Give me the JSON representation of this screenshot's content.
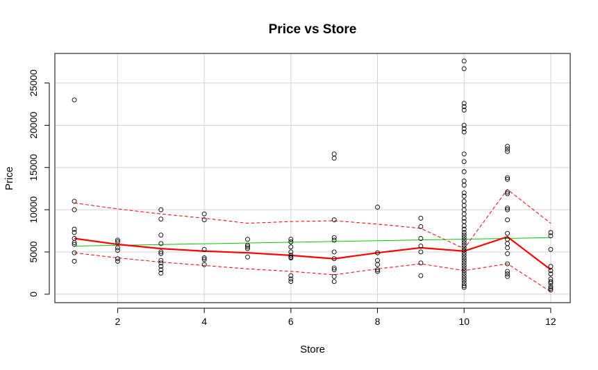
{
  "chart_data": {
    "type": "scatter",
    "title": "Price vs Store",
    "xlabel": "Store",
    "ylabel": "Price",
    "xlim": [
      0.55,
      12.45
    ],
    "ylim": [
      -1000,
      28500
    ],
    "x_ticks": [
      2,
      4,
      6,
      8,
      10,
      12
    ],
    "y_ticks": [
      0,
      5000,
      10000,
      15000,
      20000,
      25000
    ],
    "grid": true,
    "points": [
      {
        "x": 1,
        "y": 23000
      },
      {
        "x": 1,
        "y": 11000
      },
      {
        "x": 1,
        "y": 10000
      },
      {
        "x": 1,
        "y": 7700
      },
      {
        "x": 1,
        "y": 7300
      },
      {
        "x": 1,
        "y": 6600
      },
      {
        "x": 1,
        "y": 6100
      },
      {
        "x": 1,
        "y": 5900
      },
      {
        "x": 1,
        "y": 4900
      },
      {
        "x": 1,
        "y": 3900
      },
      {
        "x": 2,
        "y": 6400
      },
      {
        "x": 2,
        "y": 6200
      },
      {
        "x": 2,
        "y": 5500
      },
      {
        "x": 2,
        "y": 5200
      },
      {
        "x": 2,
        "y": 4200
      },
      {
        "x": 2,
        "y": 3900
      },
      {
        "x": 3,
        "y": 10000
      },
      {
        "x": 3,
        "y": 8900
      },
      {
        "x": 3,
        "y": 7000
      },
      {
        "x": 3,
        "y": 6000
      },
      {
        "x": 3,
        "y": 5000
      },
      {
        "x": 3,
        "y": 4800
      },
      {
        "x": 3,
        "y": 4000
      },
      {
        "x": 3,
        "y": 3700
      },
      {
        "x": 3,
        "y": 3300
      },
      {
        "x": 3,
        "y": 2900
      },
      {
        "x": 3,
        "y": 2500
      },
      {
        "x": 4,
        "y": 9500
      },
      {
        "x": 4,
        "y": 8800
      },
      {
        "x": 4,
        "y": 5300
      },
      {
        "x": 4,
        "y": 4300
      },
      {
        "x": 4,
        "y": 4100
      },
      {
        "x": 4,
        "y": 3500
      },
      {
        "x": 5,
        "y": 6500
      },
      {
        "x": 5,
        "y": 5800
      },
      {
        "x": 5,
        "y": 5600
      },
      {
        "x": 5,
        "y": 5400
      },
      {
        "x": 5,
        "y": 4400
      },
      {
        "x": 6,
        "y": 6500
      },
      {
        "x": 6,
        "y": 6200
      },
      {
        "x": 6,
        "y": 5600
      },
      {
        "x": 6,
        "y": 5000
      },
      {
        "x": 6,
        "y": 4600
      },
      {
        "x": 6,
        "y": 4400
      },
      {
        "x": 6,
        "y": 4300
      },
      {
        "x": 6,
        "y": 2200
      },
      {
        "x": 6,
        "y": 1800
      },
      {
        "x": 6,
        "y": 1500
      },
      {
        "x": 7,
        "y": 16600
      },
      {
        "x": 7,
        "y": 16100
      },
      {
        "x": 7,
        "y": 8800
      },
      {
        "x": 7,
        "y": 6700
      },
      {
        "x": 7,
        "y": 6400
      },
      {
        "x": 7,
        "y": 5000
      },
      {
        "x": 7,
        "y": 4200
      },
      {
        "x": 7,
        "y": 3100
      },
      {
        "x": 7,
        "y": 2900
      },
      {
        "x": 7,
        "y": 2100
      },
      {
        "x": 7,
        "y": 1500
      },
      {
        "x": 8,
        "y": 10300
      },
      {
        "x": 8,
        "y": 4900
      },
      {
        "x": 8,
        "y": 4000
      },
      {
        "x": 8,
        "y": 3500
      },
      {
        "x": 8,
        "y": 2900
      },
      {
        "x": 8,
        "y": 2700
      },
      {
        "x": 9,
        "y": 9000
      },
      {
        "x": 9,
        "y": 8000
      },
      {
        "x": 9,
        "y": 6600
      },
      {
        "x": 9,
        "y": 5700
      },
      {
        "x": 9,
        "y": 5000
      },
      {
        "x": 9,
        "y": 3700
      },
      {
        "x": 9,
        "y": 2200
      },
      {
        "x": 10,
        "y": 27600
      },
      {
        "x": 10,
        "y": 26700
      },
      {
        "x": 10,
        "y": 22600
      },
      {
        "x": 10,
        "y": 22200
      },
      {
        "x": 10,
        "y": 21800
      },
      {
        "x": 10,
        "y": 20000
      },
      {
        "x": 10,
        "y": 19600
      },
      {
        "x": 10,
        "y": 19200
      },
      {
        "x": 10,
        "y": 16600
      },
      {
        "x": 10,
        "y": 15700
      },
      {
        "x": 10,
        "y": 14500
      },
      {
        "x": 10,
        "y": 13400
      },
      {
        "x": 10,
        "y": 12900
      },
      {
        "x": 10,
        "y": 12000
      },
      {
        "x": 10,
        "y": 11600
      },
      {
        "x": 10,
        "y": 11000
      },
      {
        "x": 10,
        "y": 10500
      },
      {
        "x": 10,
        "y": 10000
      },
      {
        "x": 10,
        "y": 9500
      },
      {
        "x": 10,
        "y": 9000
      },
      {
        "x": 10,
        "y": 8600
      },
      {
        "x": 10,
        "y": 8100
      },
      {
        "x": 10,
        "y": 7700
      },
      {
        "x": 10,
        "y": 7300
      },
      {
        "x": 10,
        "y": 7000
      },
      {
        "x": 10,
        "y": 6700
      },
      {
        "x": 10,
        "y": 6400
      },
      {
        "x": 10,
        "y": 6100
      },
      {
        "x": 10,
        "y": 5800
      },
      {
        "x": 10,
        "y": 5500
      },
      {
        "x": 10,
        "y": 5200
      },
      {
        "x": 10,
        "y": 4900
      },
      {
        "x": 10,
        "y": 4600
      },
      {
        "x": 10,
        "y": 4300
      },
      {
        "x": 10,
        "y": 4000
      },
      {
        "x": 10,
        "y": 3700
      },
      {
        "x": 10,
        "y": 3400
      },
      {
        "x": 10,
        "y": 3100
      },
      {
        "x": 10,
        "y": 2800
      },
      {
        "x": 10,
        "y": 2500
      },
      {
        "x": 10,
        "y": 2200
      },
      {
        "x": 10,
        "y": 1900
      },
      {
        "x": 10,
        "y": 1600
      },
      {
        "x": 10,
        "y": 1300
      },
      {
        "x": 10,
        "y": 1000
      },
      {
        "x": 10,
        "y": 800
      },
      {
        "x": 11,
        "y": 17500
      },
      {
        "x": 11,
        "y": 17200
      },
      {
        "x": 11,
        "y": 16900
      },
      {
        "x": 11,
        "y": 13800
      },
      {
        "x": 11,
        "y": 13600
      },
      {
        "x": 11,
        "y": 12100
      },
      {
        "x": 11,
        "y": 11900
      },
      {
        "x": 11,
        "y": 10200
      },
      {
        "x": 11,
        "y": 10000
      },
      {
        "x": 11,
        "y": 8800
      },
      {
        "x": 11,
        "y": 7200
      },
      {
        "x": 11,
        "y": 6500
      },
      {
        "x": 11,
        "y": 6000
      },
      {
        "x": 11,
        "y": 5500
      },
      {
        "x": 11,
        "y": 4800
      },
      {
        "x": 11,
        "y": 3600
      },
      {
        "x": 11,
        "y": 2700
      },
      {
        "x": 11,
        "y": 2400
      },
      {
        "x": 11,
        "y": 2100
      },
      {
        "x": 12,
        "y": 7300
      },
      {
        "x": 12,
        "y": 6900
      },
      {
        "x": 12,
        "y": 5300
      },
      {
        "x": 12,
        "y": 3300
      },
      {
        "x": 12,
        "y": 2800
      },
      {
        "x": 12,
        "y": 2400
      },
      {
        "x": 12,
        "y": 1800
      },
      {
        "x": 12,
        "y": 1500
      },
      {
        "x": 12,
        "y": 1300
      },
      {
        "x": 12,
        "y": 900
      },
      {
        "x": 12,
        "y": 700
      },
      {
        "x": 12,
        "y": 500
      }
    ],
    "regression_line": {
      "color": "#00cc00",
      "x": [
        1,
        12
      ],
      "y": [
        5700,
        6700
      ]
    },
    "smooth_line": {
      "color": "#ff0000",
      "x": [
        1,
        2,
        3,
        4,
        5,
        6,
        7,
        8,
        9,
        10,
        11,
        12
      ],
      "y": [
        6600,
        5900,
        5400,
        5100,
        4900,
        4600,
        4200,
        4900,
        5500,
        5100,
        6800,
        2900
      ]
    },
    "upper_band": {
      "color": "#ff0000",
      "x": [
        1,
        2,
        3,
        4,
        5,
        6,
        7,
        8,
        9,
        10,
        11,
        12
      ],
      "y": [
        10800,
        10100,
        9500,
        9000,
        8400,
        8600,
        8700,
        8300,
        7800,
        5400,
        12400,
        8400
      ]
    },
    "lower_band": {
      "color": "#ff0000",
      "x": [
        1,
        2,
        3,
        4,
        5,
        6,
        7,
        8,
        9,
        10,
        11,
        12
      ],
      "y": [
        4900,
        4300,
        3800,
        3400,
        3000,
        2700,
        2300,
        3000,
        3600,
        2800,
        3600,
        300
      ]
    }
  }
}
